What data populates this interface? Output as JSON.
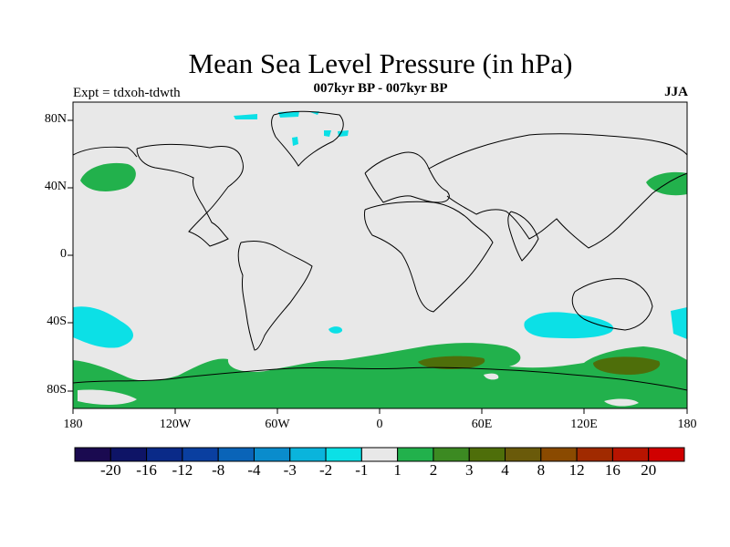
{
  "header": {
    "title": "Mean Sea Level Pressure (in hPa)",
    "subtitle": "007kyr BP - 007kyr BP",
    "experiment": "Expt = tdxoh-tdwth",
    "season": "JJA"
  },
  "axes": {
    "lat_ticks": [
      "80N",
      "40N",
      "0",
      "40S",
      "80S"
    ],
    "lon_ticks": [
      "180",
      "120W",
      "60W",
      "0",
      "60E",
      "120E",
      "180"
    ]
  },
  "colorbar": {
    "colors": [
      "#1a0a50",
      "#0e1466",
      "#0a2a88",
      "#0a3fa0",
      "#0a64b8",
      "#0a8ccc",
      "#0ab4dc",
      "#0ce0e6",
      "#e8e8e8",
      "#22b14c",
      "#3c8a22",
      "#4e6e0a",
      "#6a5a0a",
      "#8a4a00",
      "#a02a00",
      "#b81400",
      "#d00000"
    ],
    "labels": [
      "-20",
      "-16",
      "-12",
      "-8",
      "-4",
      "-3",
      "-2",
      "-1",
      "1",
      "2",
      "3",
      "4",
      "8",
      "12",
      "16",
      "20"
    ]
  },
  "colors": {
    "ocean": "#e8e8e8",
    "positive_small": "#22b14c",
    "positive_medium": "#4e6e0a",
    "negative_small": "#0ce0e6",
    "coast": "#000000"
  }
}
